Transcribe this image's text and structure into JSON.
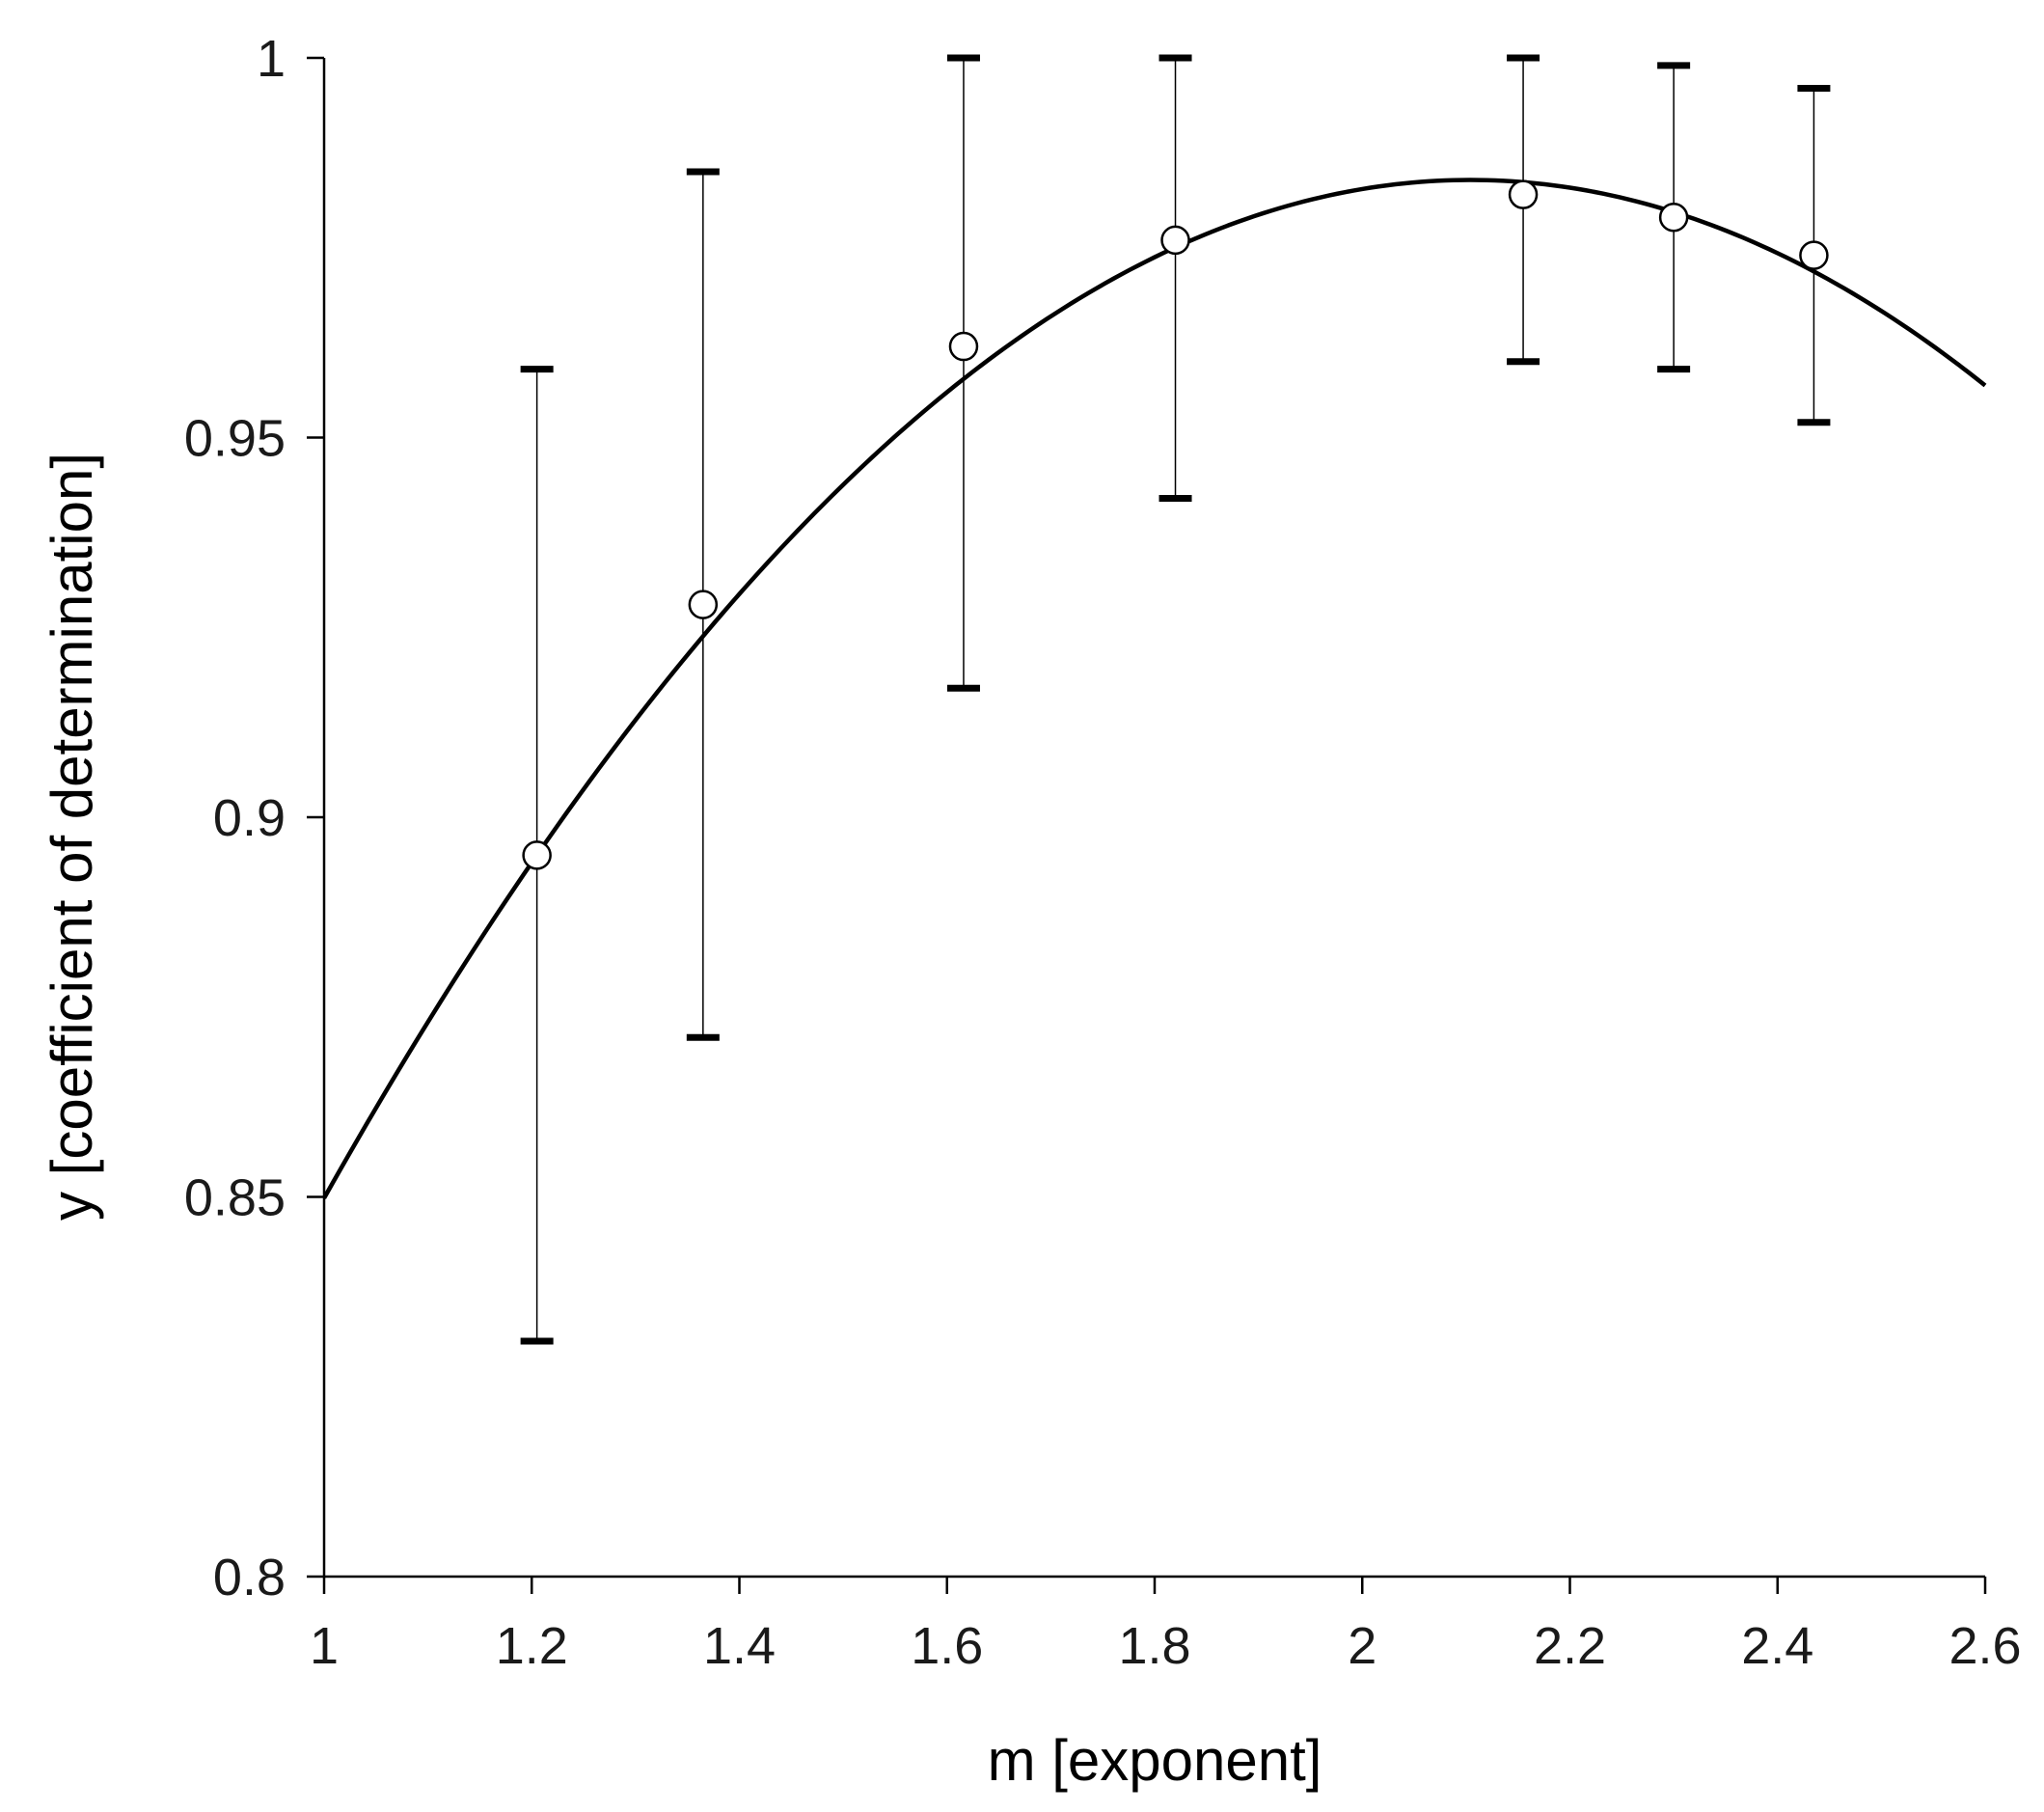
{
  "chart_data": {
    "type": "scatter",
    "xlabel": "m [exponent]",
    "ylabel": "y [coefficient of determination]",
    "xlim": [
      1,
      2.6
    ],
    "ylim": [
      0.8,
      1
    ],
    "x_ticks": [
      1,
      1.2,
      1.4,
      1.6,
      1.8,
      2,
      2.2,
      2.4,
      2.6
    ],
    "x_tick_labels": [
      "1",
      "1.2",
      "1.4",
      "1.6",
      "1.8",
      "2",
      "2.2",
      "2.4",
      "2.6"
    ],
    "y_ticks": [
      0.8,
      0.85,
      0.9,
      0.95,
      1
    ],
    "y_tick_labels": [
      "0.8",
      "0.85",
      "0.9",
      "0.95",
      "1"
    ],
    "grid": false,
    "points": [
      {
        "x": 1.205,
        "y": 0.895,
        "y_low": 0.831,
        "y_high": 0.959
      },
      {
        "x": 1.365,
        "y": 0.928,
        "y_low": 0.871,
        "y_high": 0.985
      },
      {
        "x": 1.616,
        "y": 0.962,
        "y_low": 0.917,
        "y_high": 1.0
      },
      {
        "x": 1.82,
        "y": 0.976,
        "y_low": 0.942,
        "y_high": 1.0
      },
      {
        "x": 2.155,
        "y": 0.982,
        "y_low": 0.96,
        "y_high": 1.0
      },
      {
        "x": 2.3,
        "y": 0.979,
        "y_low": 0.959,
        "y_high": 0.999
      },
      {
        "x": 2.435,
        "y": 0.974,
        "y_low": 0.952,
        "y_high": 0.996
      }
    ],
    "fit_curve": {
      "type": "quadratic",
      "x": [
        1.0,
        1.1,
        1.2,
        1.3,
        1.4,
        1.5,
        1.6,
        1.7,
        1.8,
        1.9,
        2.0,
        2.1,
        2.2,
        2.3,
        2.4,
        2.5,
        2.6
      ],
      "y": [
        0.851,
        0.874,
        0.894,
        0.912,
        0.928,
        0.942,
        0.955,
        0.966,
        0.974,
        0.98,
        0.984,
        0.985,
        0.984,
        0.98,
        0.974,
        0.966,
        0.956
      ]
    },
    "colors": {
      "curve": "#000000",
      "marker_stroke": "#000000",
      "marker_fill": "#ffffff",
      "axis": "#000000",
      "text": "#1a1a1a"
    }
  }
}
